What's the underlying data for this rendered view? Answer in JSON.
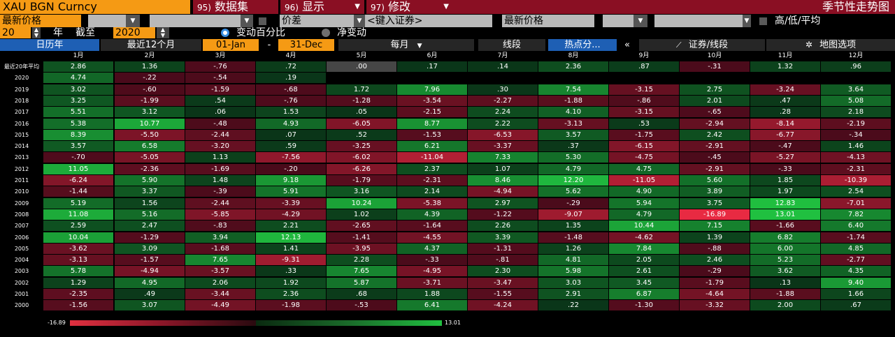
{
  "toolbar": {
    "ticker": "XAU BGN Curncy",
    "menu": [
      {
        "num": "95)",
        "label": "数据集",
        "arrow": ""
      },
      {
        "num": "96)",
        "label": "显示",
        "arrow": "▼"
      },
      {
        "num": "97)",
        "label": "修改",
        "arrow": "▼"
      }
    ],
    "page_title": "季节性走势图",
    "row2": {
      "field1": "最新价格",
      "field2": "价差",
      "security_placeholder": "<键入证券>",
      "field3": "最新价格",
      "hilo_label": "高/低/平均"
    },
    "row3": {
      "years": "20",
      "years_unit": "年",
      "as_of_label": "截至",
      "end_year": "2020",
      "radio_pct": "变动百分比",
      "radio_net": "净变动"
    },
    "row4": {
      "calendar_year": "日历年",
      "last12": "最近12个月",
      "start_date": "01-Jan",
      "dash": "-",
      "end_date": "31-Dec",
      "period": "每月",
      "period_arrow": "▼",
      "line_seg": "线段",
      "hotspot": "热点分...",
      "collapse": "«",
      "security_line": "证券/线段",
      "map_options": "地图选项"
    }
  },
  "table": {
    "months": [
      "1月",
      "2月",
      "3月",
      "4月",
      "5月",
      "6月",
      "7月",
      "8月",
      "9月",
      "10月",
      "11月",
      "12月"
    ],
    "rows": [
      {
        "label": "最近20年平均",
        "values": [
          "2.86",
          "1.36",
          "-.76",
          ".72",
          ".00",
          ".17",
          ".14",
          "2.36",
          ".87",
          "-.31",
          "1.32",
          ".96"
        ]
      },
      {
        "label": "2020",
        "values": [
          "4.74",
          "-.22",
          "-.54",
          ".19",
          null,
          null,
          null,
          null,
          null,
          null,
          null,
          null
        ]
      },
      {
        "label": "2019",
        "values": [
          "3.02",
          "-.60",
          "-1.59",
          "-.68",
          "1.72",
          "7.96",
          ".30",
          "7.54",
          "-3.15",
          "2.75",
          "-3.24",
          "3.64"
        ]
      },
      {
        "label": "2018",
        "values": [
          "3.25",
          "-1.99",
          ".54",
          "-.76",
          "-1.28",
          "-3.54",
          "-2.27",
          "-1.88",
          "-.86",
          "2.01",
          ".47",
          "5.08"
        ]
      },
      {
        "label": "2017",
        "values": [
          "5.51",
          "3.12",
          ".06",
          "1.53",
          ".05",
          "-2.15",
          "2.24",
          "4.10",
          "-3.15",
          "-.65",
          ".28",
          "2.18"
        ]
      },
      {
        "label": "2016",
        "values": [
          "5.38",
          "10.77",
          "-.48",
          "4.93",
          "-6.05",
          "8.77",
          "2.22",
          "-3.13",
          ".53",
          "-2.94",
          "-8.14",
          "-2.19"
        ]
      },
      {
        "label": "2015",
        "values": [
          "8.39",
          "-5.50",
          "-2.44",
          ".07",
          ".52",
          "-1.53",
          "-6.53",
          "3.57",
          "-1.75",
          "2.42",
          "-6.77",
          "-.34"
        ]
      },
      {
        "label": "2014",
        "values": [
          "3.57",
          "6.58",
          "-3.20",
          ".59",
          "-3.25",
          "6.21",
          "-3.37",
          ".37",
          "-6.15",
          "-2.91",
          "-.47",
          "1.46"
        ]
      },
      {
        "label": "2013",
        "values": [
          "-.70",
          "-5.05",
          "1.13",
          "-7.56",
          "-6.02",
          "-11.04",
          "7.33",
          "5.30",
          "-4.75",
          "-.45",
          "-5.27",
          "-4.13"
        ]
      },
      {
        "label": "2012",
        "values": [
          "11.05",
          "-2.36",
          "-1.69",
          "-.20",
          "-6.26",
          "2.37",
          "1.07",
          "4.79",
          "4.75",
          "-2.91",
          "-.33",
          "-2.31"
        ]
      },
      {
        "label": "2011",
        "values": [
          "-6.24",
          "5.90",
          "1.48",
          "9.18",
          "-1.79",
          "-2.31",
          "8.46",
          "12.20",
          "-11.05",
          "5.60",
          "1.85",
          "-10.39"
        ]
      },
      {
        "label": "2010",
        "values": [
          "-1.44",
          "3.37",
          "-.39",
          "5.91",
          "3.16",
          "2.14",
          "-4.94",
          "5.62",
          "4.90",
          "3.89",
          "1.97",
          "2.54"
        ]
      },
      {
        "label": "2009",
        "values": [
          "5.19",
          "1.56",
          "-2.44",
          "-3.39",
          "10.24",
          "-5.38",
          "2.97",
          "-.29",
          "5.94",
          "3.75",
          "12.83",
          "-7.01"
        ]
      },
      {
        "label": "2008",
        "values": [
          "11.08",
          "5.16",
          "-5.85",
          "-4.29",
          "1.02",
          "4.39",
          "-1.22",
          "-9.07",
          "4.79",
          "-16.89",
          "13.01",
          "7.82"
        ]
      },
      {
        "label": "2007",
        "values": [
          "2.59",
          "2.47",
          "-.83",
          "2.21",
          "-2.65",
          "-1.64",
          "2.26",
          "1.35",
          "10.44",
          "7.15",
          "-1.66",
          "6.40"
        ]
      },
      {
        "label": "2006",
        "values": [
          "10.04",
          "-1.29",
          "3.94",
          "12.13",
          "-1.41",
          "-4.55",
          "3.39",
          "-1.48",
          "-4.62",
          "1.39",
          "6.82",
          "-1.74"
        ]
      },
      {
        "label": "2005",
        "values": [
          "-3.62",
          "3.09",
          "-1.68",
          "1.41",
          "-3.95",
          "4.37",
          "-1.31",
          "1.26",
          "7.84",
          "-.88",
          "6.00",
          "4.85"
        ]
      },
      {
        "label": "2004",
        "values": [
          "-3.13",
          "-1.57",
          "7.65",
          "-9.31",
          "2.28",
          "-.33",
          "-.81",
          "4.81",
          "2.05",
          "2.46",
          "5.23",
          "-2.77"
        ]
      },
      {
        "label": "2003",
        "values": [
          "5.78",
          "-4.94",
          "-3.57",
          ".33",
          "7.65",
          "-4.95",
          "2.30",
          "5.98",
          "2.61",
          "-.29",
          "3.62",
          "4.35"
        ]
      },
      {
        "label": "2002",
        "values": [
          "1.29",
          "4.95",
          "2.06",
          "1.92",
          "5.87",
          "-3.71",
          "-3.47",
          "3.03",
          "3.45",
          "-1.79",
          ".13",
          "9.40"
        ]
      },
      {
        "label": "2001",
        "values": [
          "-2.35",
          ".49",
          "-3.44",
          "2.36",
          ".68",
          "1.88",
          "-1.55",
          "2.91",
          "6.87",
          "-4.64",
          "-1.88",
          "1.66"
        ]
      },
      {
        "label": "2000",
        "values": [
          "-1.56",
          "3.07",
          "-4.49",
          "-1.98",
          "-.53",
          "6.41",
          "-4.24",
          ".22",
          "-1.30",
          "-3.32",
          "2.00",
          ".67"
        ]
      }
    ]
  },
  "legend": {
    "min": "-16.89",
    "max": "13.01"
  },
  "colors": {
    "orange": "#f59a14",
    "menu_red": "#8a0f23",
    "active_blue": "#1e5fb4"
  }
}
